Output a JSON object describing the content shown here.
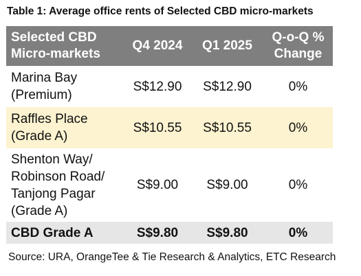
{
  "title": "Table 1: Average office rents of Selected CBD micro-markets",
  "table": {
    "headers": [
      "Selected CBD Micro-markets",
      "Q4 2024",
      "Q1 2025",
      "Q-o-Q % Change"
    ],
    "rows": [
      {
        "market": "Marina Bay (Premium)",
        "q4_2024": "S$12.90",
        "q1_2025": "S$12.90",
        "change": "0%"
      },
      {
        "market": "Raffles Place (Grade A)",
        "q4_2024": "S$10.55",
        "q1_2025": "S$10.55",
        "change": "0%"
      },
      {
        "market": "Shenton Way/ Robinson Road/ Tanjong Pagar (Grade A)",
        "q4_2024": "S$9.00",
        "q1_2025": "S$9.00",
        "change": "0%"
      },
      {
        "market": "CBD Grade A",
        "q4_2024": "S$9.80",
        "q1_2025": "S$9.80",
        "change": "0%"
      }
    ]
  },
  "source": "Source: URA, OrangeTee & Tie Research & Analytics, ETC Research",
  "colors": {
    "header_bg": "#7f7f7f",
    "highlight_row_bg": "#fdf3d0",
    "total_row_bg": "#e6e6e6"
  }
}
